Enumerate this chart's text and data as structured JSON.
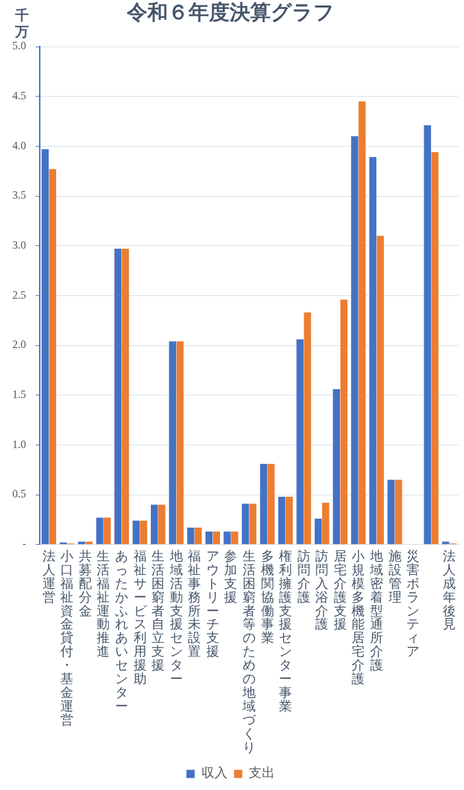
{
  "chart_data": {
    "type": "bar",
    "title": "令和６年度決算グラフ",
    "ylabel": "千万",
    "categories": [
      "法人運営",
      "小口福祉資金貸付・基金運営",
      "共募配分金",
      "生活福祉運動推進",
      "あったかふれあいセンター",
      "福祉サービス利用援助",
      "生活困窮者自立支援",
      "地域活動支援センター",
      "福祉事務所未設置",
      "アウトリーチ支援",
      "参加支援",
      "生活困窮者等のための地域づくり",
      "多機関協働事業",
      "権利擁護支援センター事業",
      "訪問介護",
      "訪問入浴介護",
      "居宅介護支援",
      "小規模多機能居宅介護",
      "地域密着型通所介護",
      "施設管理",
      "災害ボランティア",
      null,
      "法人成年後見"
    ],
    "series": [
      {
        "name": "収入",
        "color": "#4472c4",
        "values": [
          3.97,
          0.02,
          0.03,
          0.27,
          2.97,
          0.24,
          0.4,
          2.04,
          0.17,
          0.13,
          0.13,
          0.41,
          0.81,
          0.48,
          2.06,
          0.26,
          1.56,
          4.1,
          3.89,
          0.65,
          0,
          4.21,
          0.03
        ]
      },
      {
        "name": "支出",
        "color": "#ed7d31",
        "values": [
          3.77,
          0.01,
          0.03,
          0.27,
          2.97,
          0.24,
          0.4,
          2.04,
          0.17,
          0.13,
          0.13,
          0.41,
          0.81,
          0.48,
          2.33,
          0.42,
          2.46,
          4.45,
          3.1,
          0.65,
          0,
          3.94,
          0.01
        ]
      }
    ],
    "ylim": [
      0,
      5
    ],
    "yticks": [
      {
        "value": 0,
        "label": "-"
      },
      0.5,
      {
        "value": 1,
        "label": "1.0"
      },
      1.5,
      {
        "value": 2,
        "label": "2.0"
      },
      2.5,
      {
        "value": 3,
        "label": "3.0"
      },
      3.5,
      {
        "value": 4,
        "label": "4.0"
      },
      4.5,
      {
        "value": 5,
        "label": "5.0"
      }
    ],
    "grid": "y",
    "legend": "bottom"
  }
}
